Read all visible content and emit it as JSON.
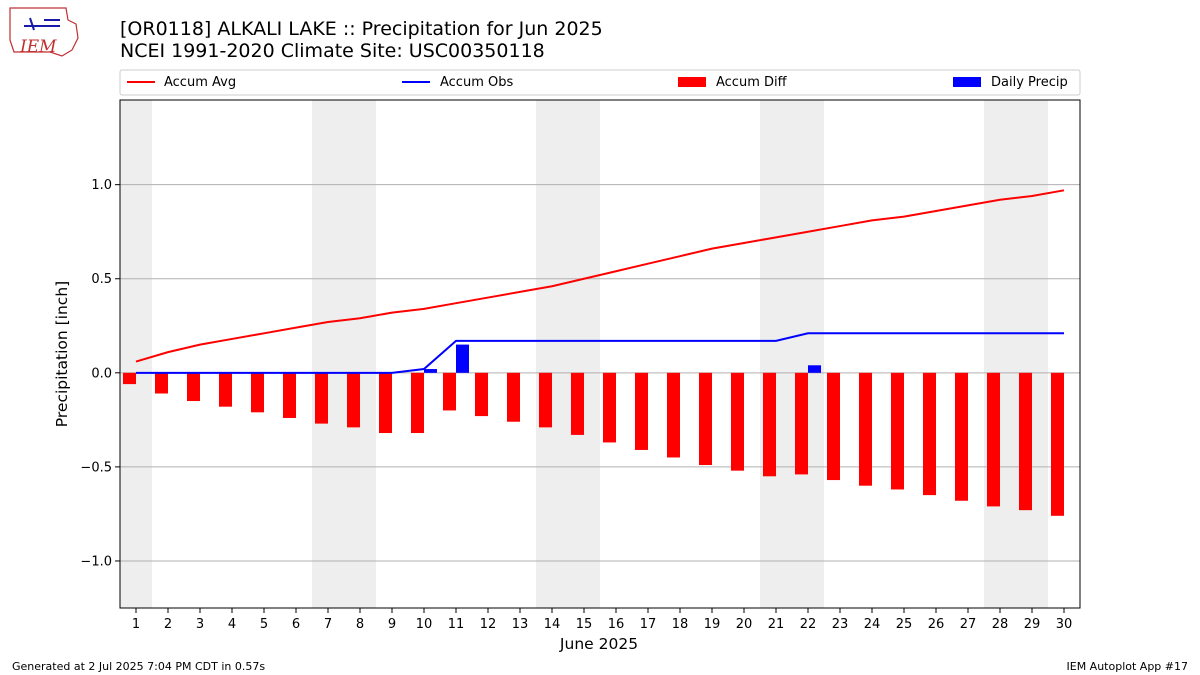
{
  "title_line1": "[OR0118] ALKALI LAKE :: Precipitation for Jun 2025",
  "title_line2": "NCEI 1991-2020 Climate Site: USC00350118",
  "logo_text": "IEM",
  "footer_left": "Generated at 2 Jul 2025 7:04 PM CDT in 0.57s",
  "footer_right": "IEM Autoplot App #17",
  "colors": {
    "avg": "#ff0000",
    "obs": "#0000ff",
    "diff": "#ff0000",
    "daily": "#0000ff",
    "weekend_shade": "#eeeeee",
    "grid": "#b0b0b0"
  },
  "chart_data": {
    "type": "bar",
    "xlabel": "June 2025",
    "ylabel": "Precipitation [inch]",
    "ylim": [
      -1.25,
      1.45
    ],
    "xlim": [
      0.5,
      30.5
    ],
    "y_ticks": [
      -1.0,
      -0.5,
      0.0,
      0.5,
      1.0
    ],
    "y_tick_labels": [
      "−1.0",
      "−0.5",
      "0.0",
      "0.5",
      "1.0"
    ],
    "grid": "horizontal",
    "legend_placement": "top, above plot",
    "shaded_days": [
      1,
      7,
      8,
      14,
      15,
      21,
      22,
      28,
      29
    ],
    "x": [
      1,
      2,
      3,
      4,
      5,
      6,
      7,
      8,
      9,
      10,
      11,
      12,
      13,
      14,
      15,
      16,
      17,
      18,
      19,
      20,
      21,
      22,
      23,
      24,
      25,
      26,
      27,
      28,
      29,
      30
    ],
    "series": [
      {
        "name": "Accum Avg",
        "kind": "line",
        "values": [
          0.06,
          0.11,
          0.15,
          0.18,
          0.21,
          0.24,
          0.27,
          0.29,
          0.32,
          0.34,
          0.37,
          0.4,
          0.43,
          0.46,
          0.5,
          0.54,
          0.58,
          0.62,
          0.66,
          0.69,
          0.72,
          0.75,
          0.78,
          0.81,
          0.83,
          0.86,
          0.89,
          0.92,
          0.94,
          0.97
        ]
      },
      {
        "name": "Accum Obs",
        "kind": "line",
        "values": [
          0,
          0,
          0,
          0,
          0,
          0,
          0,
          0,
          0,
          0.02,
          0.17,
          0.17,
          0.17,
          0.17,
          0.17,
          0.17,
          0.17,
          0.17,
          0.17,
          0.17,
          0.17,
          0.21,
          0.21,
          0.21,
          0.21,
          0.21,
          0.21,
          0.21,
          0.21,
          0.21
        ]
      },
      {
        "name": "Accum Diff",
        "kind": "bar",
        "values": [
          -0.06,
          -0.11,
          -0.15,
          -0.18,
          -0.21,
          -0.24,
          -0.27,
          -0.29,
          -0.32,
          -0.32,
          -0.2,
          -0.23,
          -0.26,
          -0.29,
          -0.33,
          -0.37,
          -0.41,
          -0.45,
          -0.49,
          -0.52,
          -0.55,
          -0.54,
          -0.57,
          -0.6,
          -0.62,
          -0.65,
          -0.68,
          -0.71,
          -0.73,
          -0.76
        ]
      },
      {
        "name": "Daily Precip",
        "kind": "bar",
        "values": [
          0,
          0,
          0,
          0,
          0,
          0,
          0,
          0,
          0,
          0.02,
          0.15,
          0,
          0,
          0,
          0,
          0,
          0,
          0,
          0,
          0,
          0,
          0.04,
          0,
          0,
          0,
          0,
          0,
          0,
          0,
          0
        ]
      }
    ]
  }
}
